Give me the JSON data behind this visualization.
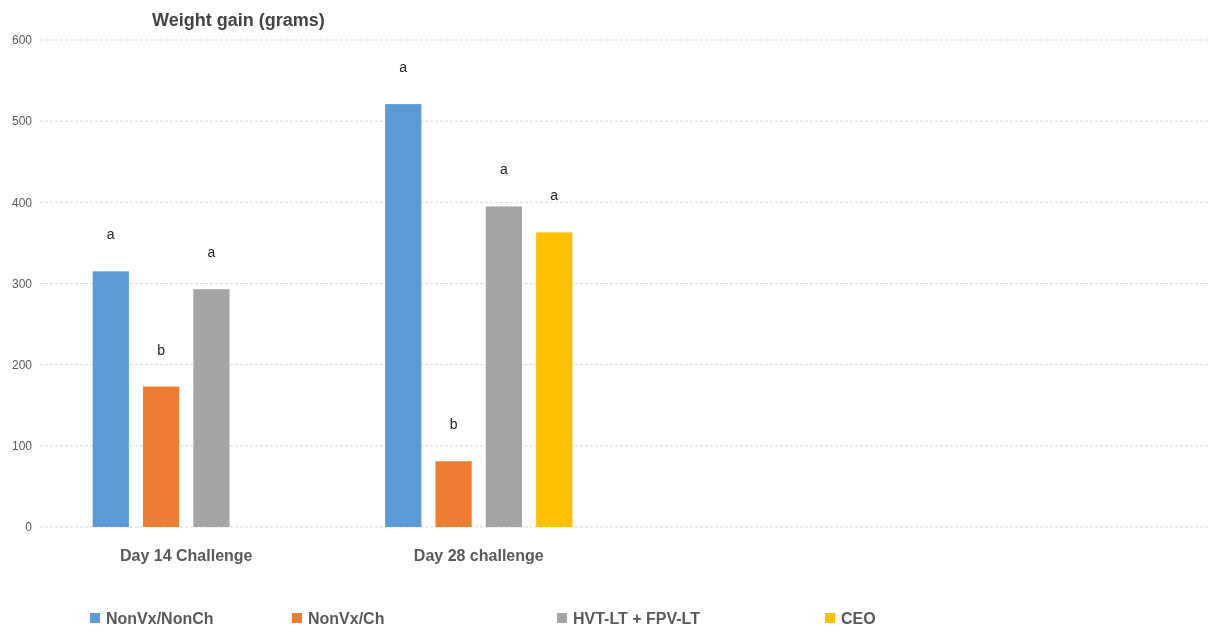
{
  "chart_data": {
    "type": "bar",
    "title": "Weight gain (grams)",
    "categories": [
      "Day 14 Challenge",
      "Day 28 challenge",
      null,
      null
    ],
    "series": [
      {
        "name": "NonVx/NonCh",
        "color": "#5b9bd5",
        "values": [
          315,
          521,
          null,
          null
        ],
        "value_labels": [
          "a",
          "a",
          null,
          null
        ]
      },
      {
        "name": "NonVx/Ch",
        "color": "#ed7d31",
        "values": [
          173,
          81,
          null,
          null
        ],
        "value_labels": [
          "b",
          "b",
          null,
          null
        ]
      },
      {
        "name": "HVT-LT + FPV-LT",
        "color": "#a5a5a5",
        "values": [
          293,
          395,
          null,
          null
        ],
        "value_labels": [
          "a",
          "a",
          null,
          null
        ]
      },
      {
        "name": "CEO",
        "color": "#ffc000",
        "values": [
          null,
          363,
          null,
          null
        ],
        "value_labels": [
          null,
          "a",
          null,
          null
        ]
      }
    ],
    "ylim": [
      0,
      600
    ],
    "yticks": [
      0,
      100,
      200,
      300,
      400,
      500,
      600
    ],
    "grid": "y",
    "legend": "bottom"
  }
}
